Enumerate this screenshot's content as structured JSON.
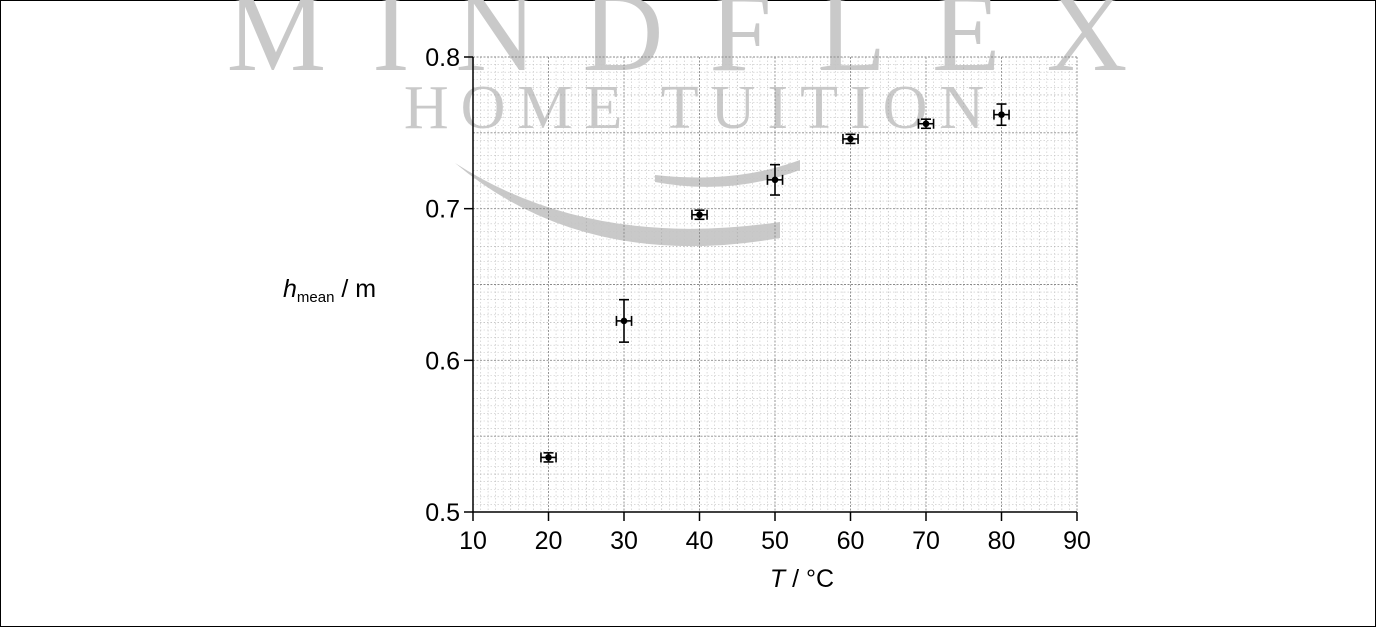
{
  "watermark": {
    "line1": "MINDFLEX",
    "line2": "HOME TUITION"
  },
  "chart_data": {
    "type": "scatter",
    "xlabel_italic": "T",
    "xlabel_rest": " / °C",
    "ylabel_main": "h",
    "ylabel_sub": "mean",
    "ylabel_rest": " / m",
    "xlim": [
      10,
      90
    ],
    "ylim": [
      0.5,
      0.8
    ],
    "xticks": [
      10,
      20,
      30,
      40,
      50,
      60,
      70,
      80,
      90
    ],
    "xtick_labels": [
      "10",
      "20",
      "30",
      "40",
      "50",
      "60",
      "70",
      "80",
      "90"
    ],
    "yticks": [
      0.5,
      0.6,
      0.7,
      0.8
    ],
    "ytick_labels": [
      "0.5",
      "0.6",
      "0.7",
      "0.8"
    ],
    "grid": true,
    "series": [
      {
        "points": [
          {
            "x": 20,
            "y": 0.536,
            "xerr": 1,
            "yerr": 0.003
          },
          {
            "x": 30,
            "y": 0.626,
            "xerr": 1,
            "yerr": 0.014
          },
          {
            "x": 40,
            "y": 0.696,
            "xerr": 1,
            "yerr": 0.003
          },
          {
            "x": 50,
            "y": 0.719,
            "xerr": 1,
            "yerr": 0.01
          },
          {
            "x": 60,
            "y": 0.746,
            "xerr": 1,
            "yerr": 0.003
          },
          {
            "x": 70,
            "y": 0.756,
            "xerr": 1,
            "yerr": 0.003
          },
          {
            "x": 80,
            "y": 0.762,
            "xerr": 1,
            "yerr": 0.007
          }
        ]
      }
    ]
  }
}
